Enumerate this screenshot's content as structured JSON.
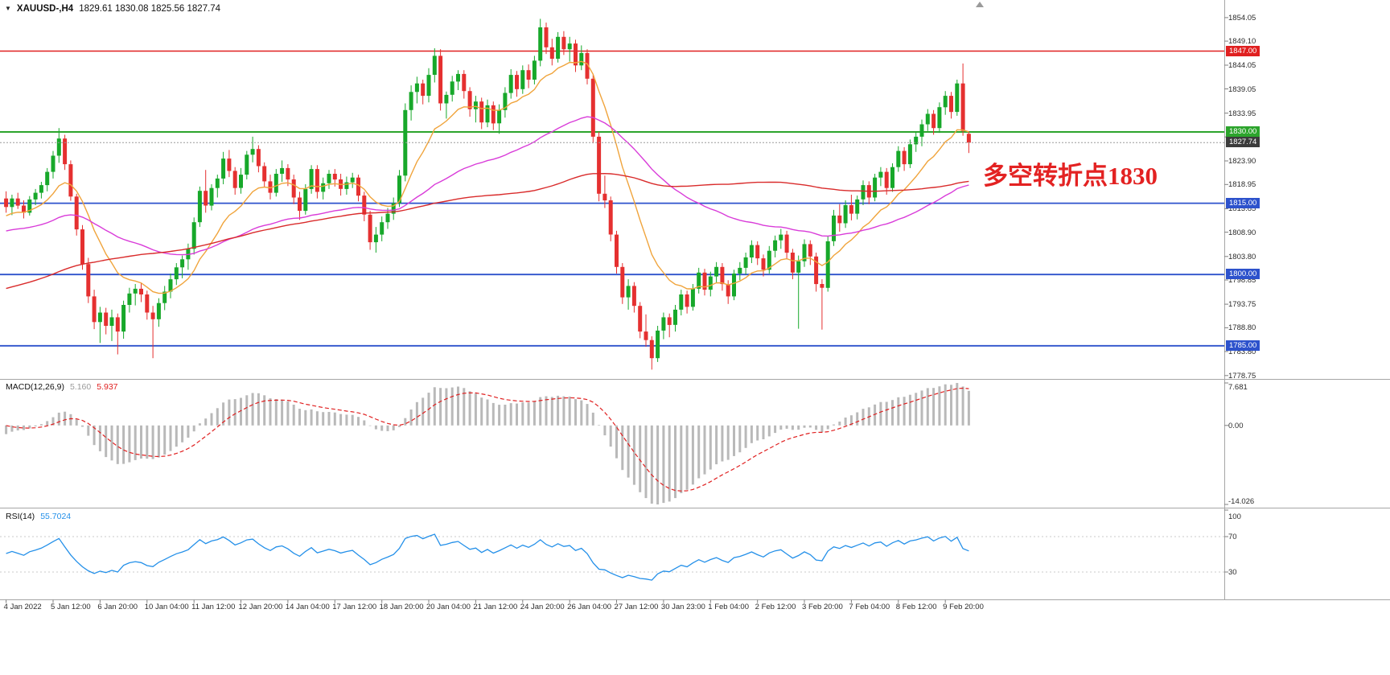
{
  "header": {
    "symbol": "XAUUSD-,H4",
    "ohlc": "1829.61 1830.08 1825.56 1827.74"
  },
  "annotation": {
    "text": "多空转折点1830",
    "color": "#e32222"
  },
  "current_price": {
    "value": 1827.74,
    "label": "1827.74",
    "line_color": "#9a9a9a",
    "badge_color": "#3c3c3c"
  },
  "levels": [
    {
      "price": 1847.0,
      "label": "1847.00",
      "color": "#e02020",
      "width": 1.4
    },
    {
      "price": 1830.0,
      "label": "1830.00",
      "color": "#2ca42c",
      "width": 2
    },
    {
      "price": 1815.0,
      "label": "1815.00",
      "color": "#2d52cc",
      "width": 1.8
    },
    {
      "price": 1800.0,
      "label": "1800.00",
      "color": "#2d52cc",
      "width": 1.8
    },
    {
      "price": 1785.0,
      "label": "1785.00",
      "color": "#2d52cc",
      "width": 1.8
    }
  ],
  "main_axis": {
    "min": 1778.2,
    "max": 1856.4,
    "ticks": [
      "1854.05",
      "1849.10",
      "1844.05",
      "1839.05",
      "1833.95",
      "1828.95",
      "1823.90",
      "1818.95",
      "1813.85",
      "1808.90",
      "1803.80",
      "1798.85",
      "1793.75",
      "1788.80",
      "1783.80",
      "1778.75"
    ]
  },
  "macd_panel": {
    "label": "MACD(12,26,9)",
    "value_main": "5.160",
    "value_signal": "5.937",
    "fast": 12,
    "slow": 26,
    "signal": 9,
    "tick_top": "7.681",
    "tick_zero": "0.00",
    "tick_bottom": "-14.026",
    "hist_color": "#b9b9b9",
    "signal_color": "#e02020",
    "hist_value_color": "#9a9a9a"
  },
  "rsi_panel": {
    "label": "RSI(14)",
    "value": "55.7024",
    "period": 14,
    "color": "#2490e9",
    "level_color": "#c8c8c8",
    "levels": [
      70,
      30
    ],
    "ticks": [
      {
        "v": 100,
        "t": "100"
      },
      {
        "v": 70,
        "t": "70"
      },
      {
        "v": 30,
        "t": "30"
      }
    ]
  },
  "time_axis": {
    "every_n_bars": 8,
    "labels": [
      "4 Jan 2022",
      "5 Jan 12:00",
      "6 Jan 20:00",
      "10 Jan 04:00",
      "11 Jan 12:00",
      "12 Jan 20:00",
      "14 Jan 04:00",
      "17 Jan 12:00",
      "18 Jan 20:00",
      "20 Jan 04:00",
      "21 Jan 12:00",
      "24 Jan 20:00",
      "26 Jan 04:00",
      "27 Jan 12:00",
      "30 Jan 23:00",
      "1 Feb 04:00",
      "2 Feb 12:00",
      "3 Feb 20:00",
      "7 Feb 04:00",
      "8 Feb 12:00",
      "9 Feb 20:00"
    ]
  },
  "chart_data": {
    "type": "candlestick",
    "symbol": "XAUUSD-",
    "timeframe": "H4",
    "ylim": [
      1778.2,
      1856.4
    ],
    "grid": false,
    "colors": {
      "bull": "#17a82a",
      "bear": "#e53030"
    },
    "moving_averages": [
      {
        "name": "fast",
        "method": "ema",
        "period": 13,
        "color": "#f0a43c"
      },
      {
        "name": "medium",
        "method": "ema",
        "period": 55,
        "color": "#d93cd9"
      },
      {
        "name": "slow",
        "method": "sma",
        "period": 100,
        "color": "#d92b2b"
      }
    ],
    "warmup_note": "estimated off-screen closes used only to seed indicator calculations",
    "warmup_closes": [
      1783,
      1781.5,
      1782.5,
      1780,
      1781,
      1779.5,
      1778,
      1779.5,
      1777,
      1775.5,
      1776.5,
      1774,
      1772.5,
      1774,
      1771.5,
      1770,
      1768.5,
      1766,
      1769,
      1772,
      1774.5,
      1776,
      1778.5,
      1777,
      1779.5,
      1781,
      1780,
      1782.5,
      1784,
      1783,
      1785.5,
      1784.5,
      1786,
      1788,
      1787,
      1789.5,
      1788.5,
      1790,
      1789,
      1791.5,
      1790.5,
      1792,
      1791,
      1793.5,
      1792.5,
      1794,
      1793,
      1795.5,
      1794.5,
      1796,
      1795,
      1797.5,
      1796.5,
      1798,
      1797,
      1799.5,
      1798.5,
      1800,
      1799,
      1801.5,
      1800.5,
      1802,
      1803.5,
      1805,
      1804,
      1806.5,
      1808,
      1807,
      1809.5,
      1811,
      1810,
      1812.5,
      1814,
      1813,
      1815.5,
      1817,
      1816,
      1818.5,
      1820,
      1819,
      1821.5,
      1823,
      1822,
      1824.5,
      1826,
      1825,
      1827.5,
      1829,
      1828,
      1826.5,
      1824,
      1820,
      1816,
      1812,
      1808,
      1804,
      1800,
      1803,
      1808,
      1812
    ],
    "candles": [
      [
        1816.0,
        1817.5,
        1813.0,
        1814.2
      ],
      [
        1814.2,
        1816.8,
        1812.5,
        1816.0
      ],
      [
        1816.0,
        1817.2,
        1813.8,
        1814.5
      ],
      [
        1814.5,
        1815.6,
        1811.8,
        1813.0
      ],
      [
        1813.0,
        1816.5,
        1812.4,
        1815.8
      ],
      [
        1815.8,
        1818.0,
        1814.6,
        1817.2
      ],
      [
        1817.2,
        1819.5,
        1816.0,
        1818.8
      ],
      [
        1818.8,
        1822.4,
        1817.5,
        1821.6
      ],
      [
        1821.6,
        1826.0,
        1820.2,
        1825.0
      ],
      [
        1825.0,
        1830.8,
        1823.5,
        1828.6
      ],
      [
        1828.6,
        1829.4,
        1822.0,
        1823.2
      ],
      [
        1823.2,
        1824.0,
        1815.5,
        1816.4
      ],
      [
        1816.4,
        1817.0,
        1808.2,
        1809.5
      ],
      [
        1809.5,
        1810.4,
        1801.0,
        1802.2
      ],
      [
        1802.2,
        1803.5,
        1794.0,
        1795.4
      ],
      [
        1795.4,
        1796.8,
        1788.5,
        1790.0
      ],
      [
        1790.0,
        1793.2,
        1785.6,
        1792.0
      ],
      [
        1792.0,
        1793.0,
        1787.4,
        1789.2
      ],
      [
        1789.2,
        1792.6,
        1786.0,
        1791.0
      ],
      [
        1791.0,
        1791.8,
        1783.2,
        1788.0
      ],
      [
        1788.0,
        1794.5,
        1786.5,
        1793.6
      ],
      [
        1793.6,
        1797.2,
        1792.0,
        1796.0
      ],
      [
        1796.0,
        1798.0,
        1793.5,
        1797.0
      ],
      [
        1797.0,
        1798.2,
        1794.2,
        1795.8
      ],
      [
        1795.8,
        1796.6,
        1790.5,
        1792.0
      ],
      [
        1792.0,
        1793.4,
        1782.4,
        1790.6
      ],
      [
        1790.6,
        1795.0,
        1789.0,
        1794.0
      ],
      [
        1794.0,
        1797.6,
        1792.5,
        1796.4
      ],
      [
        1796.4,
        1800.2,
        1795.0,
        1799.0
      ],
      [
        1799.0,
        1802.4,
        1797.8,
        1801.5
      ],
      [
        1801.5,
        1804.0,
        1799.2,
        1803.2
      ],
      [
        1803.2,
        1806.5,
        1801.0,
        1805.4
      ],
      [
        1805.4,
        1812.0,
        1804.2,
        1811.0
      ],
      [
        1811.0,
        1818.5,
        1810.0,
        1817.6
      ],
      [
        1817.6,
        1822.0,
        1813.0,
        1814.5
      ],
      [
        1814.5,
        1819.0,
        1813.5,
        1818.2
      ],
      [
        1818.2,
        1821.0,
        1816.2,
        1820.2
      ],
      [
        1820.2,
        1825.8,
        1819.0,
        1824.4
      ],
      [
        1824.4,
        1826.2,
        1820.5,
        1821.8
      ],
      [
        1821.8,
        1822.6,
        1816.8,
        1818.2
      ],
      [
        1818.2,
        1822.4,
        1817.0,
        1821.0
      ],
      [
        1821.0,
        1826.0,
        1820.0,
        1825.2
      ],
      [
        1825.2,
        1829.0,
        1823.6,
        1826.4
      ],
      [
        1826.4,
        1827.2,
        1821.5,
        1822.8
      ],
      [
        1822.8,
        1823.6,
        1818.4,
        1819.6
      ],
      [
        1819.6,
        1821.0,
        1815.8,
        1817.2
      ],
      [
        1817.2,
        1822.2,
        1816.4,
        1821.2
      ],
      [
        1821.2,
        1824.0,
        1819.5,
        1822.4
      ],
      [
        1822.4,
        1823.2,
        1818.6,
        1820.0
      ],
      [
        1820.0,
        1821.0,
        1814.8,
        1816.2
      ],
      [
        1816.2,
        1817.4,
        1811.5,
        1813.4
      ],
      [
        1813.4,
        1819.0,
        1812.6,
        1818.0
      ],
      [
        1818.0,
        1823.0,
        1817.0,
        1822.2
      ],
      [
        1822.2,
        1823.0,
        1816.0,
        1817.4
      ],
      [
        1817.4,
        1820.4,
        1815.8,
        1819.2
      ],
      [
        1819.2,
        1822.0,
        1818.0,
        1821.2
      ],
      [
        1821.2,
        1822.2,
        1818.5,
        1820.0
      ],
      [
        1820.0,
        1821.2,
        1816.6,
        1818.0
      ],
      [
        1818.0,
        1820.6,
        1816.8,
        1819.4
      ],
      [
        1819.4,
        1821.4,
        1818.2,
        1820.4
      ],
      [
        1820.4,
        1821.0,
        1815.4,
        1816.6
      ],
      [
        1816.6,
        1817.4,
        1811.2,
        1812.6
      ],
      [
        1812.6,
        1813.4,
        1805.2,
        1806.8
      ],
      [
        1806.8,
        1810.0,
        1804.6,
        1808.4
      ],
      [
        1808.4,
        1812.2,
        1807.0,
        1811.0
      ],
      [
        1811.0,
        1814.0,
        1809.6,
        1812.8
      ],
      [
        1812.8,
        1816.2,
        1811.5,
        1815.0
      ],
      [
        1815.0,
        1822.0,
        1814.2,
        1820.8
      ],
      [
        1820.8,
        1836.0,
        1819.6,
        1834.6
      ],
      [
        1834.6,
        1839.8,
        1832.4,
        1838.4
      ],
      [
        1838.4,
        1841.6,
        1836.0,
        1840.2
      ],
      [
        1840.2,
        1841.0,
        1835.8,
        1837.6
      ],
      [
        1837.6,
        1843.4,
        1836.2,
        1842.0
      ],
      [
        1842.0,
        1847.6,
        1840.4,
        1846.0
      ],
      [
        1846.0,
        1847.4,
        1834.5,
        1836.0
      ],
      [
        1836.0,
        1838.5,
        1832.8,
        1837.8
      ],
      [
        1837.8,
        1841.8,
        1836.4,
        1840.6
      ],
      [
        1840.6,
        1843.0,
        1838.8,
        1842.2
      ],
      [
        1842.2,
        1843.0,
        1837.0,
        1838.6
      ],
      [
        1838.6,
        1839.4,
        1833.2,
        1834.8
      ],
      [
        1834.8,
        1837.6,
        1832.0,
        1836.4
      ],
      [
        1836.4,
        1837.2,
        1830.6,
        1832.0
      ],
      [
        1832.0,
        1836.8,
        1831.0,
        1835.6
      ],
      [
        1835.6,
        1836.4,
        1830.4,
        1831.8
      ],
      [
        1831.8,
        1835.8,
        1829.6,
        1834.6
      ],
      [
        1834.6,
        1839.4,
        1833.0,
        1838.2
      ],
      [
        1838.2,
        1843.2,
        1837.0,
        1842.0
      ],
      [
        1842.0,
        1842.8,
        1837.4,
        1839.0
      ],
      [
        1839.0,
        1844.0,
        1838.0,
        1843.0
      ],
      [
        1843.0,
        1844.2,
        1839.2,
        1841.0
      ],
      [
        1841.0,
        1846.0,
        1840.0,
        1845.0
      ],
      [
        1845.0,
        1853.8,
        1843.8,
        1852.0
      ],
      [
        1852.0,
        1853.0,
        1846.4,
        1847.8
      ],
      [
        1847.8,
        1849.6,
        1844.0,
        1845.4
      ],
      [
        1845.4,
        1851.0,
        1844.6,
        1850.0
      ],
      [
        1850.0,
        1851.2,
        1846.2,
        1847.4
      ],
      [
        1847.4,
        1850.0,
        1844.8,
        1848.6
      ],
      [
        1848.6,
        1849.4,
        1842.6,
        1844.0
      ],
      [
        1844.0,
        1848.2,
        1843.0,
        1846.6
      ],
      [
        1846.6,
        1847.4,
        1840.0,
        1841.2
      ],
      [
        1841.2,
        1842.0,
        1827.6,
        1829.0
      ],
      [
        1829.0,
        1830.0,
        1815.4,
        1817.0
      ],
      [
        1817.0,
        1820.8,
        1814.0,
        1815.6
      ],
      [
        1815.6,
        1816.4,
        1807.0,
        1808.4
      ],
      [
        1808.4,
        1809.2,
        1800.2,
        1801.6
      ],
      [
        1801.6,
        1802.4,
        1793.8,
        1795.2
      ],
      [
        1795.2,
        1799.0,
        1792.6,
        1797.6
      ],
      [
        1797.6,
        1798.4,
        1792.0,
        1793.4
      ],
      [
        1793.4,
        1794.2,
        1786.6,
        1788.0
      ],
      [
        1788.0,
        1791.6,
        1784.8,
        1786.2
      ],
      [
        1786.2,
        1787.0,
        1780.0,
        1782.4
      ],
      [
        1782.4,
        1789.2,
        1781.6,
        1788.2
      ],
      [
        1788.2,
        1792.0,
        1786.4,
        1791.0
      ],
      [
        1791.0,
        1791.8,
        1786.8,
        1789.4
      ],
      [
        1789.4,
        1793.6,
        1788.0,
        1792.6
      ],
      [
        1792.6,
        1796.8,
        1791.4,
        1795.8
      ],
      [
        1795.8,
        1796.6,
        1791.8,
        1793.2
      ],
      [
        1793.2,
        1798.0,
        1792.4,
        1797.0
      ],
      [
        1797.0,
        1801.4,
        1796.0,
        1800.4
      ],
      [
        1800.4,
        1801.2,
        1795.6,
        1796.8
      ],
      [
        1796.8,
        1800.6,
        1795.4,
        1799.6
      ],
      [
        1799.6,
        1802.6,
        1798.2,
        1801.6
      ],
      [
        1801.6,
        1802.4,
        1796.6,
        1798.0
      ],
      [
        1798.0,
        1798.8,
        1793.8,
        1795.4
      ],
      [
        1795.4,
        1801.0,
        1794.6,
        1800.2
      ],
      [
        1800.2,
        1802.6,
        1798.8,
        1801.4
      ],
      [
        1801.4,
        1804.6,
        1800.0,
        1803.6
      ],
      [
        1803.6,
        1807.2,
        1802.4,
        1806.2
      ],
      [
        1806.2,
        1807.0,
        1802.0,
        1803.4
      ],
      [
        1803.4,
        1804.2,
        1799.6,
        1801.0
      ],
      [
        1801.0,
        1806.0,
        1800.2,
        1805.0
      ],
      [
        1805.0,
        1808.2,
        1803.6,
        1807.2
      ],
      [
        1807.2,
        1809.6,
        1805.4,
        1808.4
      ],
      [
        1808.4,
        1809.2,
        1803.2,
        1804.6
      ],
      [
        1804.6,
        1805.4,
        1799.0,
        1800.4
      ],
      [
        1800.4,
        1804.0,
        1788.6,
        1802.8
      ],
      [
        1802.8,
        1807.4,
        1801.6,
        1806.4
      ],
      [
        1806.4,
        1807.2,
        1802.0,
        1803.8
      ],
      [
        1803.8,
        1804.6,
        1796.4,
        1798.0
      ],
      [
        1798.0,
        1799.0,
        1788.4,
        1797.2
      ],
      [
        1797.2,
        1808.0,
        1796.4,
        1807.0
      ],
      [
        1807.0,
        1813.6,
        1806.0,
        1812.4
      ],
      [
        1812.4,
        1814.8,
        1809.0,
        1810.8
      ],
      [
        1810.8,
        1815.6,
        1809.8,
        1814.6
      ],
      [
        1814.6,
        1816.8,
        1811.4,
        1812.8
      ],
      [
        1812.8,
        1816.6,
        1811.6,
        1815.8
      ],
      [
        1815.8,
        1819.8,
        1814.6,
        1818.8
      ],
      [
        1818.8,
        1819.6,
        1814.8,
        1816.2
      ],
      [
        1816.2,
        1821.2,
        1815.4,
        1820.4
      ],
      [
        1820.4,
        1822.6,
        1818.6,
        1821.6
      ],
      [
        1821.6,
        1822.4,
        1816.8,
        1818.2
      ],
      [
        1818.2,
        1823.4,
        1817.4,
        1822.6
      ],
      [
        1822.6,
        1827.0,
        1821.6,
        1826.0
      ],
      [
        1826.0,
        1826.8,
        1821.8,
        1823.2
      ],
      [
        1823.2,
        1828.4,
        1822.4,
        1827.4
      ],
      [
        1827.4,
        1830.0,
        1825.8,
        1829.0
      ],
      [
        1829.0,
        1832.6,
        1827.0,
        1831.6
      ],
      [
        1831.6,
        1834.8,
        1830.2,
        1833.8
      ],
      [
        1833.8,
        1834.6,
        1829.4,
        1830.8
      ],
      [
        1830.8,
        1836.2,
        1829.8,
        1835.2
      ],
      [
        1835.2,
        1838.6,
        1833.6,
        1837.6
      ],
      [
        1837.6,
        1838.4,
        1832.8,
        1834.2
      ],
      [
        1834.2,
        1841.0,
        1833.4,
        1840.2
      ],
      [
        1840.2,
        1844.4,
        1829.2,
        1830.2
      ],
      [
        1829.61,
        1830.08,
        1825.56,
        1827.74
      ]
    ]
  }
}
